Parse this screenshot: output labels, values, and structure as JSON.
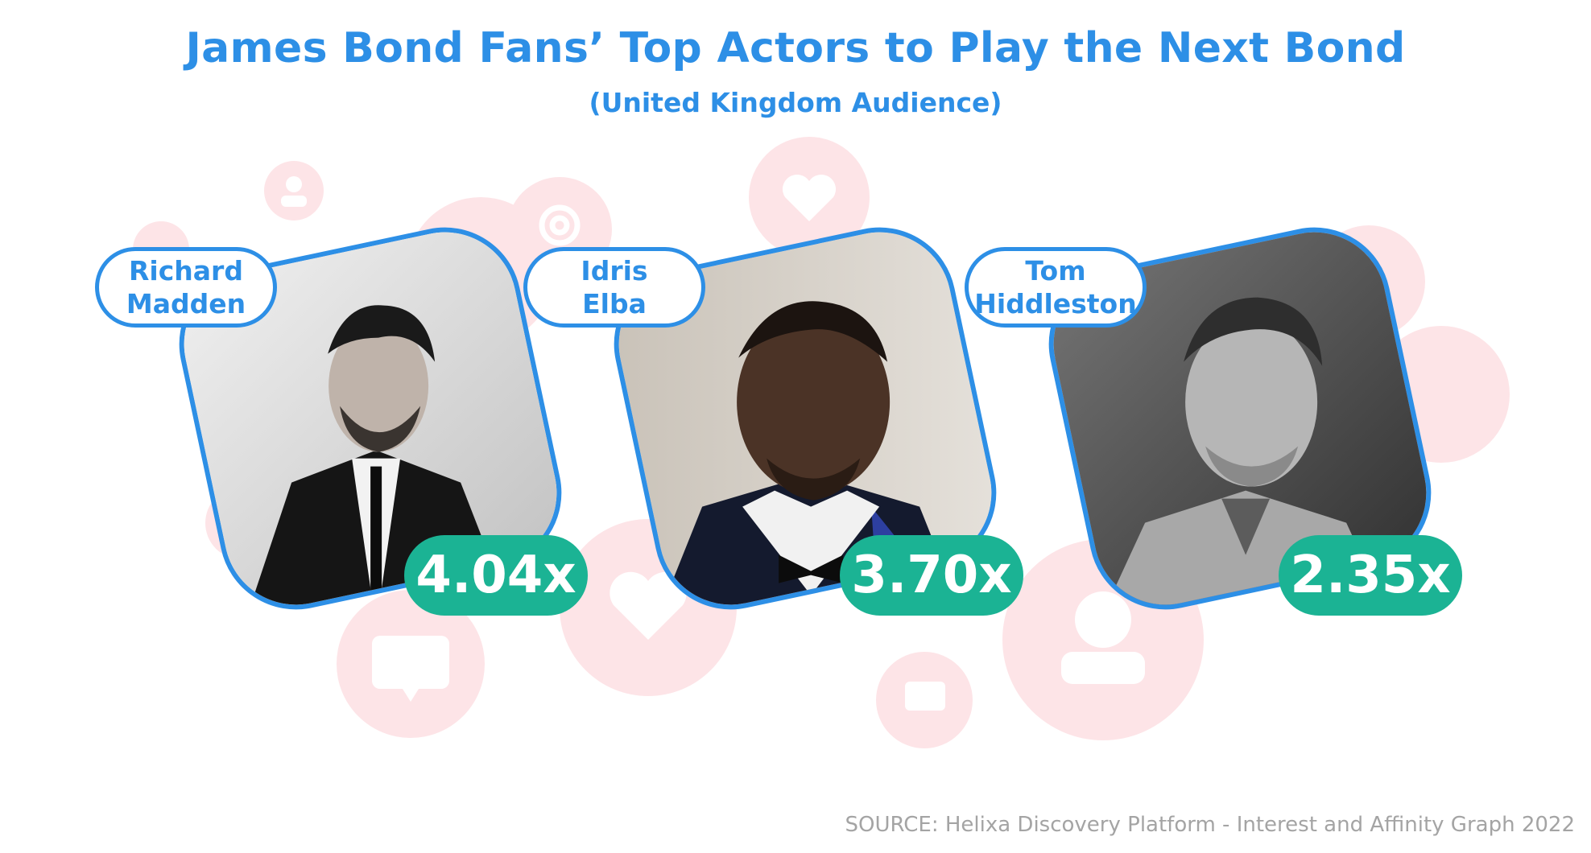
{
  "title": "James Bond Fans’ Top Actors to Play the Next Bond",
  "subtitle": "(United Kingdom Audience)",
  "actors": [
    {
      "name_line1": "Richard",
      "name_line2": "Madden",
      "score": "4.04x",
      "photo_icon": "portrait-photo-light"
    },
    {
      "name_line1": "Idris",
      "name_line2": "Elba",
      "score": "3.70x",
      "photo_icon": "portrait-photo-dark"
    },
    {
      "name_line1": "Tom",
      "name_line2": "Hiddleston",
      "score": "2.35x",
      "photo_icon": "portrait-photo-mono"
    }
  ],
  "background_icons": [
    "user-icon",
    "at-icon",
    "heart-icon",
    "chat-icon"
  ],
  "source": "SOURCE: Helixa Discovery Platform - Interest and Affinity Graph 2022",
  "colors": {
    "accent_blue": "#2d8fe6",
    "badge_green": "#1bb394",
    "bubble_pink": "#fde3e6",
    "source_gray": "#a4a4a4"
  }
}
